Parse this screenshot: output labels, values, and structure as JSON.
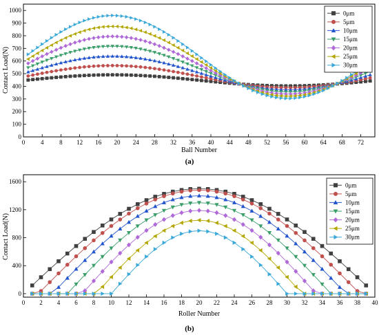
{
  "colors": [
    "#404040",
    "#c0504d",
    "#2255cc",
    "#3a9e6a",
    "#b06ad8",
    "#b3a600",
    "#3aa8d8"
  ],
  "markers": [
    "square",
    "circle",
    "triangle-up",
    "triangle-down",
    "diamond",
    "triangle-left",
    "triangle-right"
  ],
  "chart_data": [
    {
      "type": "line",
      "caption": "(a)",
      "xlabel": "Ball Number",
      "ylabel": "Contact Load(N)",
      "xlim": [
        0,
        75
      ],
      "ylim": [
        0,
        1050
      ],
      "xticks": [
        0,
        4,
        8,
        12,
        16,
        20,
        24,
        28,
        32,
        36,
        40,
        44,
        48,
        52,
        56,
        60,
        64,
        68,
        72
      ],
      "yticks": [
        0,
        100,
        200,
        300,
        400,
        500,
        600,
        700,
        800,
        900,
        1000
      ],
      "grid": false,
      "legend_position": "top-right",
      "x_start": 1,
      "x_end": 74,
      "shape": "cosine",
      "shape_period": 75,
      "shape_peak_x": 19,
      "series": [
        {
          "name": "0μm",
          "amplitude": 44,
          "mean": 447
        },
        {
          "name": "5μm",
          "amplitude": 88,
          "mean": 476
        },
        {
          "name": "10μm",
          "amplitude": 133,
          "mean": 505
        },
        {
          "name": "15μm",
          "amplitude": 181,
          "mean": 536
        },
        {
          "name": "20μm",
          "amplitude": 228,
          "mean": 567
        },
        {
          "name": "25μm",
          "amplitude": 276,
          "mean": 598
        },
        {
          "name": "30μm",
          "amplitude": 328,
          "mean": 632
        }
      ]
    },
    {
      "type": "line",
      "caption": "(b)",
      "xlabel": "Roller Number",
      "ylabel": "Contact Load(N)",
      "xlim": [
        0,
        40
      ],
      "ylim": [
        -50,
        1700
      ],
      "xticks": [
        0,
        2,
        4,
        6,
        8,
        10,
        12,
        14,
        16,
        18,
        20,
        22,
        24,
        26,
        28,
        30,
        32,
        34,
        36,
        38,
        40
      ],
      "yticks": [
        0,
        400,
        800,
        1200,
        1600
      ],
      "grid": false,
      "legend_position": "top-right",
      "x_start": 1,
      "x_end": 39,
      "shape": "half-cosine",
      "center_x": 20,
      "series": [
        {
          "name": "0μm",
          "peak": 1500,
          "half_width": 20
        },
        {
          "name": "5μm",
          "peak": 1480,
          "half_width": 18.3
        },
        {
          "name": "10μm",
          "peak": 1400,
          "half_width": 16.7
        },
        {
          "name": "15μm",
          "peak": 1300,
          "half_width": 15
        },
        {
          "name": "20μm",
          "peak": 1190,
          "half_width": 13.3
        },
        {
          "name": "25μm",
          "peak": 1050,
          "half_width": 11.7
        },
        {
          "name": "30μm",
          "peak": 900,
          "half_width": 10
        }
      ]
    }
  ]
}
